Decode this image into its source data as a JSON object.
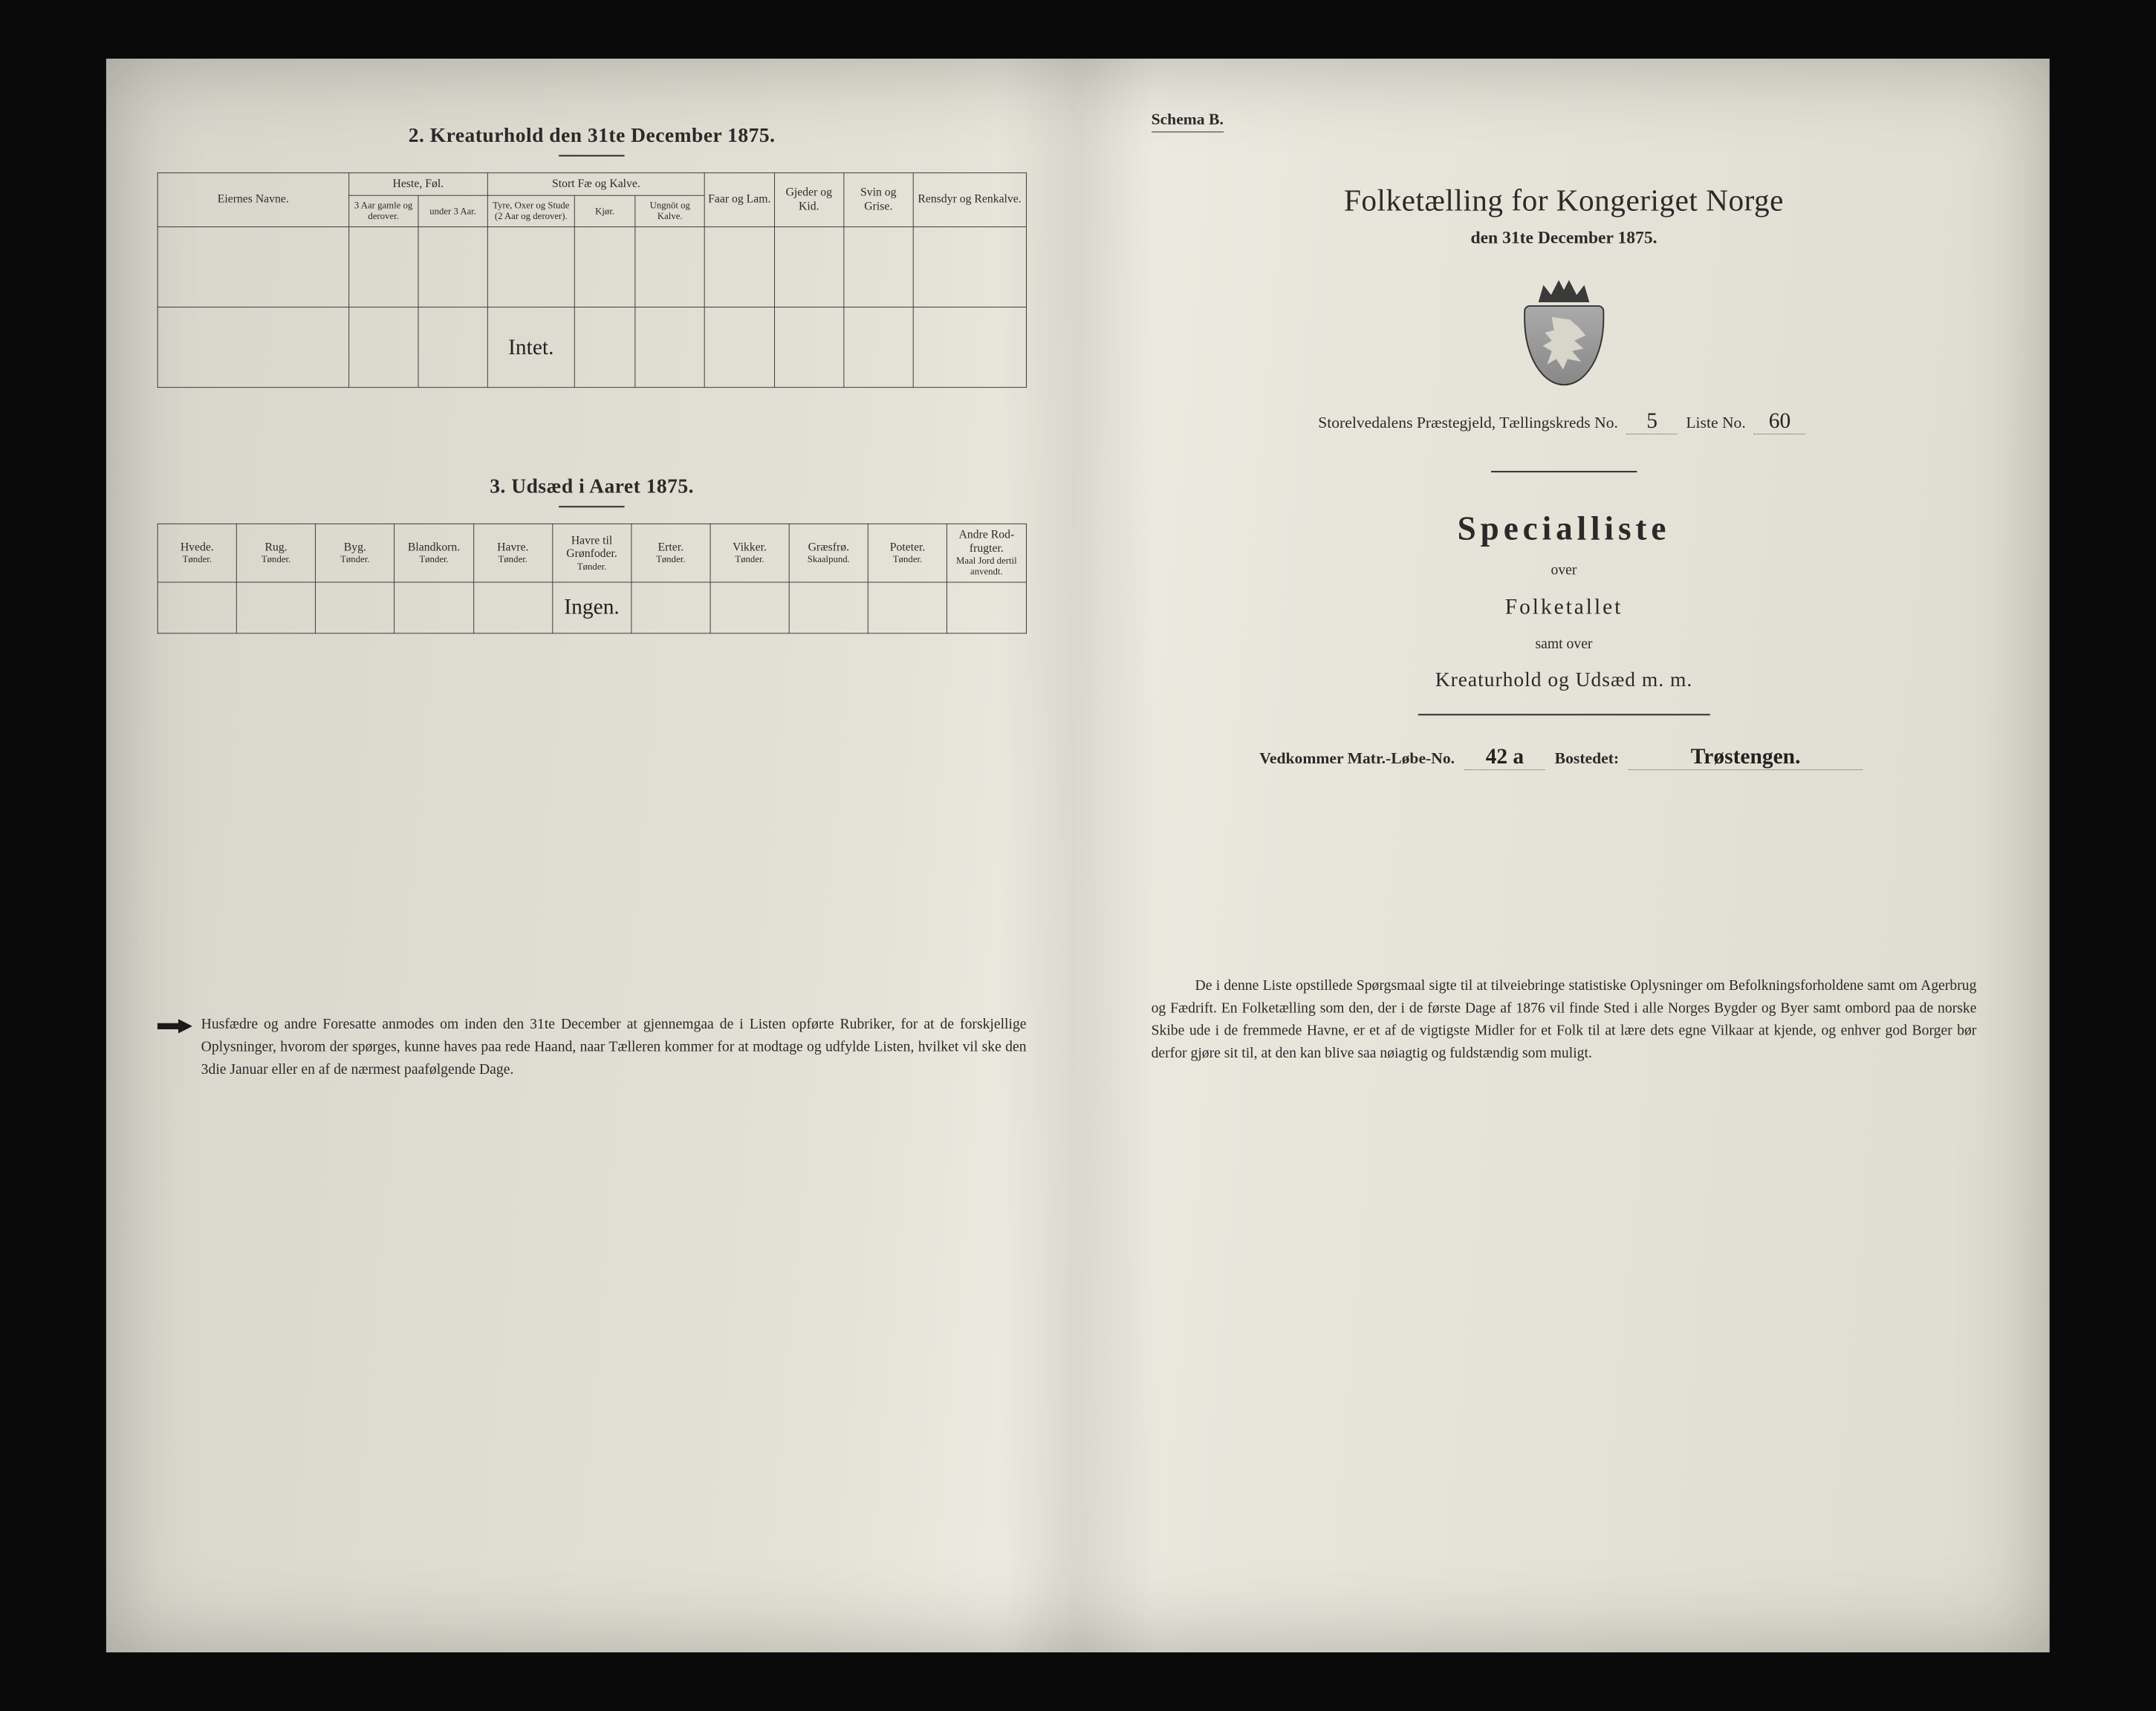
{
  "left": {
    "section2_title": "2.  Kreaturhold den 31te December 1875.",
    "section3_title": "3.  Udsæd i Aaret 1875.",
    "kreatur": {
      "col_eier": "Eiernes Navne.",
      "grp_heste": "Heste, Føl.",
      "grp_stort": "Stort Fæ og Kalve.",
      "col_faar": "Faar og Lam.",
      "col_gjeder": "Gjeder og Kid.",
      "col_svin": "Svin og Grise.",
      "col_ren": "Rensdyr og Renkalve.",
      "sub_h1": "3 Aar gamle og derover.",
      "sub_h2": "under 3 Aar.",
      "sub_s1": "Tyre, Oxer og Stude (2 Aar og derover).",
      "sub_s2": "Kjør.",
      "sub_s3": "Ungnöt og Kalve.",
      "row_value": "Intet."
    },
    "utsaed": {
      "cols": [
        {
          "h": "Hvede.",
          "s": "Tønder."
        },
        {
          "h": "Rug.",
          "s": "Tønder."
        },
        {
          "h": "Byg.",
          "s": "Tønder."
        },
        {
          "h": "Blandkorn.",
          "s": "Tønder."
        },
        {
          "h": "Havre.",
          "s": "Tønder."
        },
        {
          "h": "Havre til Grønfoder.",
          "s": "Tønder."
        },
        {
          "h": "Erter.",
          "s": "Tønder."
        },
        {
          "h": "Vikker.",
          "s": "Tønder."
        },
        {
          "h": "Græsfrø.",
          "s": "Skaalpund."
        },
        {
          "h": "Poteter.",
          "s": "Tønder."
        },
        {
          "h": "Andre Rod-frugter.",
          "s": "Maal Jord dertil anvendt."
        }
      ],
      "row_value": "Ingen."
    },
    "footnote": "Husfædre og andre Foresatte anmodes om inden den 31te December at gjennemgaa de i Listen opførte Rubriker, for at de forskjellige Oplysninger, hvorom der spørges, kunne haves paa rede Haand, naar Tælleren kommer for at modtage og udfylde Listen, hvilket vil ske den 3die Januar eller en af de nærmest paafølgende Dage."
  },
  "right": {
    "schema": "Schema B.",
    "title": "Folketælling for Kongeriget Norge",
    "date": "den 31te December 1875.",
    "kreds_prefix": "Storelvedalens Præstegjeld, Tællingskreds No.",
    "kreds_no": "5",
    "liste_label": "Liste No.",
    "liste_no": "60",
    "special": "Specialliste",
    "over": "over",
    "folketallet": "Folketallet",
    "samt": "samt over",
    "kreatur": "Kreaturhold og Udsæd m. m.",
    "vedk_label": "Vedkommer Matr.-Løbe-No.",
    "matr_no": "42 a",
    "bosted_label": "Bostedet:",
    "bosted": "Trøstengen.",
    "foot": "De i denne Liste opstillede Spørgsmaal sigte til at tilveiebringe statistiske Oplysninger om Befolkningsforholdene samt om Agerbrug og Fædrift.  En Folketælling som den, der i de første Dage af 1876 vil finde Sted i alle Norges Bygder og Byer samt ombord paa de norske Skibe ude i de fremmede Havne, er et af de vigtigste Midler for et Folk til at lære dets egne Vilkaar at kjende, og enhver god Borger bør derfor gjøre sit til, at den kan blive saa nøiagtig og fuldstændig som muligt."
  },
  "colors": {
    "ink": "#2a2a2a",
    "paper_light": "#ecebe1",
    "paper_dark": "#d8d6cb",
    "frame": "#0a0a0a"
  }
}
